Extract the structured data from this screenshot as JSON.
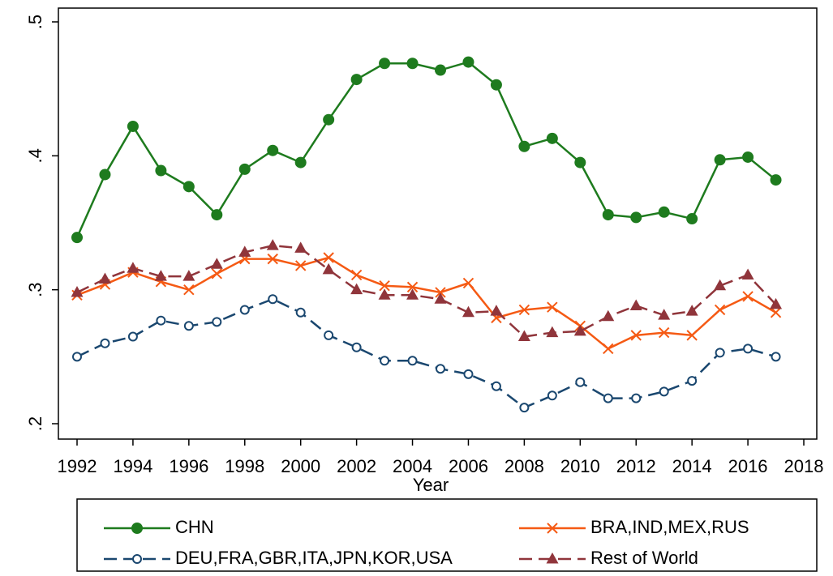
{
  "chart_data": {
    "type": "line",
    "x_label": "Year",
    "x": [
      1992,
      1993,
      1994,
      1995,
      1996,
      1997,
      1998,
      1999,
      2000,
      2001,
      2002,
      2003,
      2004,
      2005,
      2006,
      2007,
      2008,
      2009,
      2010,
      2011,
      2012,
      2013,
      2014,
      2015,
      2016,
      2017
    ],
    "xlim": [
      1992,
      2018
    ],
    "xticks": [
      1992,
      1994,
      1996,
      1998,
      2000,
      2002,
      2004,
      2006,
      2008,
      2010,
      2012,
      2014,
      2016,
      2018
    ],
    "ylim": [
      0.2,
      0.5
    ],
    "yticks": [
      {
        "value": 0.2,
        "label": ".2"
      },
      {
        "value": 0.3,
        "label": ".3"
      },
      {
        "value": 0.4,
        "label": ".4"
      },
      {
        "value": 0.5,
        "label": ".5"
      }
    ],
    "legend": "bottom",
    "series": [
      {
        "name": "CHN",
        "color": "#1e7b1e",
        "marker": "circle",
        "dash": "solid",
        "values": [
          0.339,
          0.386,
          0.422,
          0.389,
          0.377,
          0.356,
          0.39,
          0.404,
          0.395,
          0.427,
          0.457,
          0.469,
          0.469,
          0.464,
          0.47,
          0.453,
          0.407,
          0.413,
          0.395,
          0.356,
          0.354,
          0.358,
          0.353,
          0.397,
          0.399,
          0.382
        ]
      },
      {
        "name": "BRA,IND,MEX,RUS",
        "color": "#f55a14",
        "marker": "x",
        "dash": "solid",
        "values": [
          0.296,
          0.304,
          0.313,
          0.306,
          0.3,
          0.312,
          0.323,
          0.323,
          0.318,
          0.324,
          0.311,
          0.303,
          0.302,
          0.298,
          0.305,
          0.279,
          0.285,
          0.287,
          0.273,
          0.256,
          0.266,
          0.268,
          0.266,
          0.285,
          0.295,
          0.283
        ]
      },
      {
        "name": "DEU,FRA,GBR,ITA,JPN,KOR,USA",
        "color": "#1a476f",
        "marker": "hollow-circle",
        "dash": "dashed",
        "values": [
          0.25,
          0.26,
          0.265,
          0.277,
          0.273,
          0.276,
          0.285,
          0.293,
          0.283,
          0.266,
          0.257,
          0.247,
          0.247,
          0.241,
          0.237,
          0.228,
          0.212,
          0.221,
          0.231,
          0.219,
          0.219,
          0.224,
          0.232,
          0.253,
          0.256,
          0.25
        ]
      },
      {
        "name": "Rest of World",
        "color": "#90353b",
        "marker": "triangle",
        "dash": "dashed",
        "values": [
          0.298,
          0.308,
          0.316,
          0.31,
          0.31,
          0.319,
          0.328,
          0.333,
          0.331,
          0.315,
          0.3,
          0.296,
          0.296,
          0.293,
          0.283,
          0.284,
          0.265,
          0.268,
          0.269,
          0.28,
          0.288,
          0.281,
          0.284,
          0.303,
          0.311,
          0.289
        ]
      }
    ]
  }
}
